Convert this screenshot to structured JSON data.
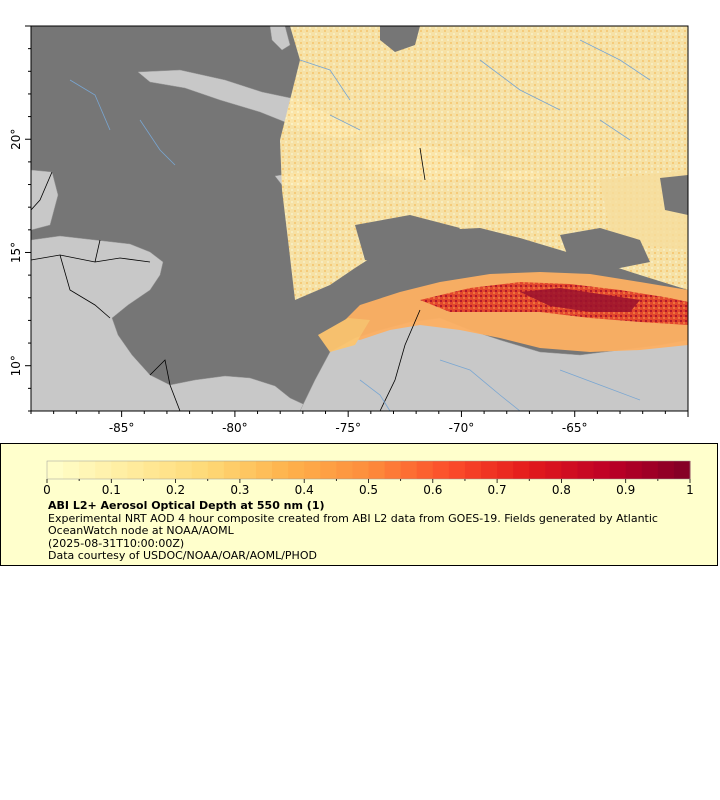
{
  "map": {
    "x_ticks": [
      "-85°",
      "-80°",
      "-75°",
      "-70°",
      "-65°"
    ],
    "y_ticks": [
      "10°",
      "15°",
      "20°"
    ],
    "lon_range": [
      -89,
      -60
    ],
    "lat_range": [
      8,
      25
    ],
    "colors": {
      "ocean_nodata": "#767676",
      "land": "#c8c8c8",
      "rivers": "#79a6d2",
      "borders": "#000000"
    }
  },
  "legend": {
    "colorbar_ticks": [
      "0",
      "0.1",
      "0.2",
      "0.3",
      "0.4",
      "0.5",
      "0.6",
      "0.7",
      "0.8",
      "0.9",
      "1"
    ],
    "colorbar_range": [
      0,
      1
    ],
    "colorbar_stops": [
      "#ffffcc",
      "#ffeda0",
      "#fed976",
      "#feb24c",
      "#fd8d3c",
      "#fc4e2a",
      "#e31a1c",
      "#bd0026",
      "#800026"
    ],
    "title": "ABI L2+ Aerosol Optical Depth at 550 nm (1)",
    "description": "Experimental NRT AOD 4 hour composite created from ABI L2 data from GOES-19. Fields generated by Atlantic OceanWatch node at NOAA/AOML",
    "timestamp": "(2025-08-31T10:00:00Z)",
    "credit": "Data courtesy of USDOC/NOAA/OAR/AOML/PHOD"
  }
}
